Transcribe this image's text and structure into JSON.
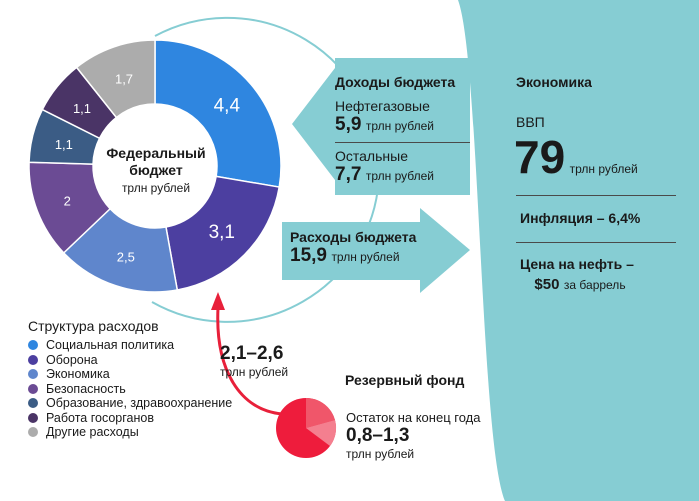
{
  "chart_data": {
    "type": "pie",
    "center": {
      "line1": "Федеральный",
      "line2": "бюджет",
      "unit": "трлн рублей"
    },
    "slices": [
      {
        "name": "Социальная политика",
        "value": 4.4,
        "label": "4,4",
        "color": "#2f86e0"
      },
      {
        "name": "Оборона",
        "value": 3.1,
        "label": "3,1",
        "color": "#4c3fa0"
      },
      {
        "name": "Экономика",
        "value": 2.5,
        "label": "2,5",
        "color": "#5f86cc"
      },
      {
        "name": "Безопасность",
        "value": 2.0,
        "label": "2",
        "color": "#6b4b94"
      },
      {
        "name": "Образование, здравоохранение",
        "value": 1.1,
        "label": "1,1",
        "color": "#3b5c85"
      },
      {
        "name": "Работа госорганов",
        "value": 1.1,
        "label": "1,1",
        "color": "#4a3466"
      },
      {
        "name": "Другие расходы",
        "value": 1.7,
        "label": "1,7",
        "color": "#acacac"
      }
    ]
  },
  "legend": {
    "title": "Структура расходов"
  },
  "income": {
    "title": "Доходы бюджета",
    "oil_label": "Нефтегазовые",
    "oil_value": "5,9",
    "other_label": "Остальные",
    "other_value": "7,7",
    "unit": "трлн рублей"
  },
  "expenses": {
    "title": "Расходы бюджета",
    "value": "15,9",
    "unit": "трлн рублей"
  },
  "economy": {
    "title": "Экономика",
    "gdp_label": "ВВП",
    "gdp_value": "79",
    "gdp_unit": "трлн рублей",
    "inflation": "Инфляция – 6,4%",
    "oil_price_label": "Цена на нефть –",
    "oil_price_value": "$50",
    "oil_price_unit": "за баррель"
  },
  "gap": {
    "value": "2,1–2,6",
    "unit": "трлн рублей"
  },
  "reserve": {
    "title": "Резервный фонд",
    "label": "Остаток на конец года",
    "value": "0,8–1,3",
    "unit": "трлн рублей"
  },
  "colors": {
    "teal": "#86cdd3",
    "reserve_red": "#ee1c3c",
    "arrow_red": "#e8203a"
  }
}
